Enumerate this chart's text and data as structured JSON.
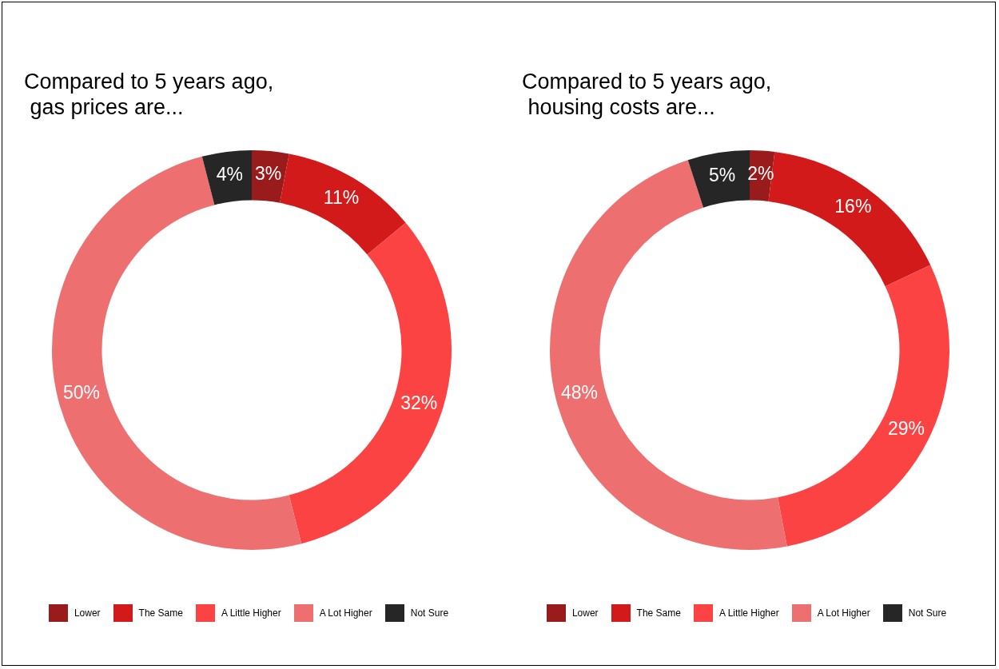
{
  "chart_data": [
    {
      "type": "donut",
      "title": "Compared to 5 years ago,\n gas prices are...",
      "categories": [
        "Lower",
        "The Same",
        "A Little Higher",
        "A Lot Higher",
        "Not Sure"
      ],
      "values": [
        3,
        11,
        32,
        50,
        4
      ],
      "value_labels": [
        "3%",
        "11%",
        "32%",
        "50%",
        "4%"
      ],
      "colors": [
        "#9a1b1b",
        "#d21a1a",
        "#fc4343",
        "#ee6f6f",
        "#262626"
      ],
      "legend": "bottom"
    },
    {
      "type": "donut",
      "title": "Compared to 5 years ago,\n housing costs are...",
      "categories": [
        "Lower",
        "The Same",
        "A Little Higher",
        "A Lot Higher",
        "Not Sure"
      ],
      "values": [
        2,
        16,
        29,
        48,
        5
      ],
      "value_labels": [
        "2%",
        "16%",
        "29%",
        "48%",
        "5%"
      ],
      "colors": [
        "#9a1b1b",
        "#d21a1a",
        "#fc4343",
        "#ee6f6f",
        "#262626"
      ],
      "legend": "bottom"
    }
  ]
}
